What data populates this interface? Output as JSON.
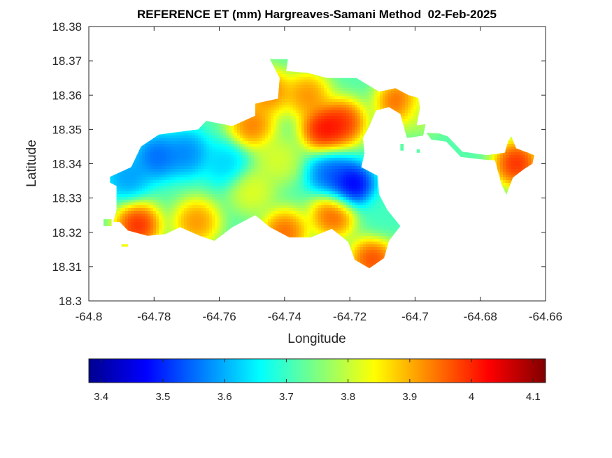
{
  "chart_data": {
    "type": "heatmap",
    "title": "REFERENCE ET (mm) Hargreaves-Samani Method  02-Feb-2025",
    "xlabel": "Longitude",
    "ylabel": "Latitude",
    "xlim": [
      -64.8,
      -64.66
    ],
    "ylim": [
      18.3,
      18.38
    ],
    "x_ticks": [
      "-64.8",
      "-64.78",
      "-64.76",
      "-64.74",
      "-64.72",
      "-64.7",
      "-64.68",
      "-64.66"
    ],
    "y_ticks": [
      "18.3",
      "18.31",
      "18.32",
      "18.33",
      "18.34",
      "18.35",
      "18.36",
      "18.37",
      "18.38"
    ],
    "colorbar": {
      "colormap": "jet",
      "range": [
        3.38,
        4.12
      ],
      "ticks": [
        "3.4",
        "3.5",
        "3.6",
        "3.7",
        "3.8",
        "3.9",
        "4",
        "4.1"
      ],
      "placement": "bottom"
    },
    "field": {
      "base_value": 3.72,
      "anomalies": [
        {
          "lon": -64.7195,
          "lat": 18.3335,
          "value": 3.38
        },
        {
          "lon": -64.726,
          "lat": 18.337,
          "value": 3.5
        },
        {
          "lon": -64.779,
          "lat": 18.342,
          "value": 3.5
        },
        {
          "lon": -64.77,
          "lat": 18.343,
          "value": 3.53
        },
        {
          "lon": -64.788,
          "lat": 18.336,
          "value": 3.55
        },
        {
          "lon": -64.758,
          "lat": 18.34,
          "value": 3.6
        },
        {
          "lon": -64.71,
          "lat": 18.325,
          "value": 3.7
        },
        {
          "lon": -64.728,
          "lat": 18.35,
          "value": 4.1
        },
        {
          "lon": -64.722,
          "lat": 18.352,
          "value": 4.06
        },
        {
          "lon": -64.733,
          "lat": 18.36,
          "value": 3.98
        },
        {
          "lon": -64.745,
          "lat": 18.361,
          "value": 4.0
        },
        {
          "lon": -64.75,
          "lat": 18.351,
          "value": 4.0
        },
        {
          "lon": -64.785,
          "lat": 18.322,
          "value": 4.08
        },
        {
          "lon": -64.74,
          "lat": 18.32,
          "value": 4.02
        },
        {
          "lon": -64.725,
          "lat": 18.325,
          "value": 4.03
        },
        {
          "lon": -64.767,
          "lat": 18.323,
          "value": 3.98
        },
        {
          "lon": -64.713,
          "lat": 18.312,
          "value": 4.05
        },
        {
          "lon": -64.705,
          "lat": 18.358,
          "value": 4.03
        },
        {
          "lon": -64.669,
          "lat": 18.34,
          "value": 4.08
        },
        {
          "lon": -64.698,
          "lat": 18.355,
          "value": 3.8
        },
        {
          "lon": -64.75,
          "lat": 18.332,
          "value": 3.85
        },
        {
          "lon": -64.742,
          "lat": 18.341,
          "value": 3.84
        }
      ]
    },
    "domain_outline": [
      [
        -64.7445,
        18.3705
      ],
      [
        -64.739,
        18.3705
      ],
      [
        -64.7395,
        18.367
      ],
      [
        -64.733,
        18.3665
      ],
      [
        -64.727,
        18.365
      ],
      [
        -64.718,
        18.365
      ],
      [
        -64.711,
        18.361
      ],
      [
        -64.706,
        18.362
      ],
      [
        -64.702,
        18.36
      ],
      [
        -64.699,
        18.3592
      ],
      [
        -64.6985,
        18.3562
      ],
      [
        -64.6995,
        18.3512
      ],
      [
        -64.6968,
        18.3515
      ],
      [
        -64.6975,
        18.3482
      ],
      [
        -64.7025,
        18.3475
      ],
      [
        -64.7045,
        18.3545
      ],
      [
        -64.708,
        18.3565
      ],
      [
        -64.712,
        18.3555
      ],
      [
        -64.714,
        18.351
      ],
      [
        -64.716,
        18.3475
      ],
      [
        -64.7155,
        18.343
      ],
      [
        -64.7165,
        18.339
      ],
      [
        -64.7115,
        18.3365
      ],
      [
        -64.711,
        18.331
      ],
      [
        -64.7085,
        18.3265
      ],
      [
        -64.7045,
        18.3218
      ],
      [
        -64.708,
        18.3175
      ],
      [
        -64.7095,
        18.3125
      ],
      [
        -64.714,
        18.3095
      ],
      [
        -64.7185,
        18.312
      ],
      [
        -64.7205,
        18.3172
      ],
      [
        -64.7255,
        18.321
      ],
      [
        -64.732,
        18.3185
      ],
      [
        -64.7385,
        18.3185
      ],
      [
        -64.7445,
        18.3215
      ],
      [
        -64.749,
        18.325
      ],
      [
        -64.756,
        18.3215
      ],
      [
        -64.7615,
        18.3175
      ],
      [
        -64.766,
        18.319
      ],
      [
        -64.772,
        18.3215
      ],
      [
        -64.7765,
        18.3195
      ],
      [
        -64.782,
        18.319
      ],
      [
        -64.788,
        18.3205
      ],
      [
        -64.7905,
        18.323
      ],
      [
        -64.7925,
        18.323
      ],
      [
        -64.7915,
        18.3265
      ],
      [
        -64.7915,
        18.3335
      ],
      [
        -64.7935,
        18.3345
      ],
      [
        -64.7935,
        18.3362
      ],
      [
        -64.787,
        18.339
      ],
      [
        -64.784,
        18.345
      ],
      [
        -64.7785,
        18.3485
      ],
      [
        -64.7705,
        18.3495
      ],
      [
        -64.7665,
        18.35
      ],
      [
        -64.764,
        18.3525
      ],
      [
        -64.756,
        18.351
      ],
      [
        -64.749,
        18.354
      ],
      [
        -64.749,
        18.3575
      ],
      [
        -64.742,
        18.359
      ],
      [
        -64.7415,
        18.365
      ],
      [
        -64.7445,
        18.3705
      ]
    ],
    "east_strip": [
      [
        -64.6965,
        18.349
      ],
      [
        -64.6925,
        18.3488
      ],
      [
        -64.69,
        18.348
      ],
      [
        -64.6855,
        18.3435
      ],
      [
        -64.678,
        18.3425
      ],
      [
        -64.6725,
        18.3432
      ],
      [
        -64.6715,
        18.3465
      ],
      [
        -64.6705,
        18.348
      ],
      [
        -64.669,
        18.3445
      ],
      [
        -64.6635,
        18.3425
      ],
      [
        -64.664,
        18.34
      ],
      [
        -64.6665,
        18.3385
      ],
      [
        -64.67,
        18.336
      ],
      [
        -64.672,
        18.331
      ],
      [
        -64.6735,
        18.334
      ],
      [
        -64.6755,
        18.341
      ],
      [
        -64.679,
        18.3412
      ],
      [
        -64.686,
        18.342
      ],
      [
        -64.6905,
        18.3465
      ],
      [
        -64.695,
        18.347
      ],
      [
        -64.6965,
        18.349
      ]
    ],
    "islets": [
      [
        [
          -64.7955,
          18.3218
        ],
        [
          -64.793,
          18.3218
        ],
        [
          -64.793,
          18.3238
        ],
        [
          -64.7955,
          18.3238
        ]
      ],
      [
        [
          -64.79,
          18.3158
        ],
        [
          -64.788,
          18.3158
        ],
        [
          -64.788,
          18.3165
        ],
        [
          -64.79,
          18.3165
        ]
      ],
      [
        [
          -64.7045,
          18.3438
        ],
        [
          -64.7035,
          18.3438
        ],
        [
          -64.7035,
          18.3458
        ],
        [
          -64.7045,
          18.3458
        ]
      ],
      [
        [
          -64.6995,
          18.3432
        ],
        [
          -64.6985,
          18.3432
        ],
        [
          -64.6985,
          18.3442
        ],
        [
          -64.6995,
          18.3442
        ]
      ]
    ]
  }
}
